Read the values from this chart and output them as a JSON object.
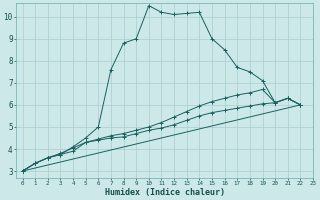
{
  "xlabel": "Humidex (Indice chaleur)",
  "bg_color": "#cce8e8",
  "grid_color": "#aacece",
  "line_color": "#1a6060",
  "line1_x": [
    0,
    1,
    2,
    3,
    4,
    5,
    6,
    7,
    8,
    9,
    10,
    11,
    12,
    13,
    14,
    15,
    16,
    17,
    18,
    19,
    20,
    21,
    22
  ],
  "line1_y": [
    3.0,
    3.35,
    3.6,
    3.75,
    4.1,
    4.5,
    5.0,
    7.6,
    8.8,
    9.0,
    10.5,
    10.2,
    10.1,
    10.15,
    10.2,
    9.0,
    8.5,
    7.7,
    7.5,
    7.1,
    6.1,
    6.3,
    6.0
  ],
  "line2_x": [
    0,
    1,
    2,
    3,
    4,
    5,
    6,
    7,
    8,
    9,
    10,
    11,
    12,
    13,
    14,
    15,
    16,
    17,
    18,
    19,
    20,
    21,
    22
  ],
  "line2_y": [
    3.0,
    3.35,
    3.6,
    3.75,
    3.9,
    4.3,
    4.45,
    4.6,
    4.7,
    4.85,
    5.0,
    5.2,
    5.45,
    5.7,
    5.95,
    6.15,
    6.3,
    6.45,
    6.55,
    6.7,
    6.1,
    6.3,
    6.0
  ],
  "line3_x": [
    0,
    1,
    2,
    3,
    4,
    5,
    6,
    7,
    8,
    9,
    10,
    11,
    12,
    13,
    14,
    15,
    16,
    17,
    18,
    19,
    20,
    21,
    22
  ],
  "line3_y": [
    3.0,
    3.35,
    3.6,
    3.8,
    4.05,
    4.3,
    4.4,
    4.5,
    4.55,
    4.7,
    4.85,
    4.95,
    5.1,
    5.3,
    5.5,
    5.65,
    5.75,
    5.85,
    5.95,
    6.05,
    6.1,
    6.3,
    6.0
  ],
  "line4_x": [
    0,
    22
  ],
  "line4_y": [
    3.0,
    6.0
  ],
  "xlim": [
    -0.5,
    23
  ],
  "ylim": [
    2.7,
    10.6
  ],
  "yticks": [
    3,
    4,
    5,
    6,
    7,
    8,
    9,
    10
  ]
}
